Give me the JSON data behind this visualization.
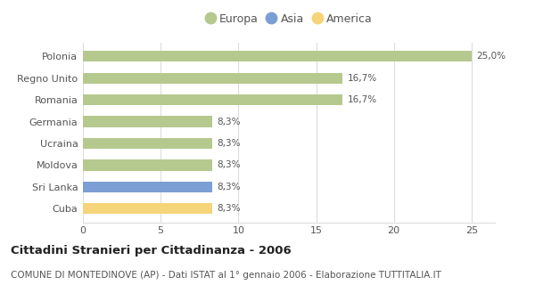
{
  "categories": [
    "Cuba",
    "Sri Lanka",
    "Moldova",
    "Ucraina",
    "Germania",
    "Romania",
    "Regno Unito",
    "Polonia"
  ],
  "values": [
    8.3,
    8.3,
    8.3,
    8.3,
    8.3,
    16.7,
    16.7,
    25.0
  ],
  "colors": [
    "#f5d47a",
    "#7b9fd4",
    "#b5c98e",
    "#b5c98e",
    "#b5c98e",
    "#b5c98e",
    "#b5c98e",
    "#b5c98e"
  ],
  "labels": [
    "8,3%",
    "8,3%",
    "8,3%",
    "8,3%",
    "8,3%",
    "16,7%",
    "16,7%",
    "25,0%"
  ],
  "legend": [
    {
      "label": "Europa",
      "color": "#b5c98e"
    },
    {
      "label": "Asia",
      "color": "#7b9fd4"
    },
    {
      "label": "America",
      "color": "#f5d47a"
    }
  ],
  "xlim": [
    0,
    26.5
  ],
  "xticks": [
    0,
    5,
    10,
    15,
    20,
    25
  ],
  "title": "Cittadini Stranieri per Cittadinanza - 2006",
  "subtitle": "COMUNE DI MONTEDINOVE (AP) - Dati ISTAT al 1° gennaio 2006 - Elaborazione TUTTITALIA.IT",
  "bg_color": "#ffffff",
  "grid_color": "#dddddd",
  "bar_height": 0.5,
  "label_fontsize": 7.5,
  "title_fontsize": 9.5,
  "subtitle_fontsize": 7.5
}
